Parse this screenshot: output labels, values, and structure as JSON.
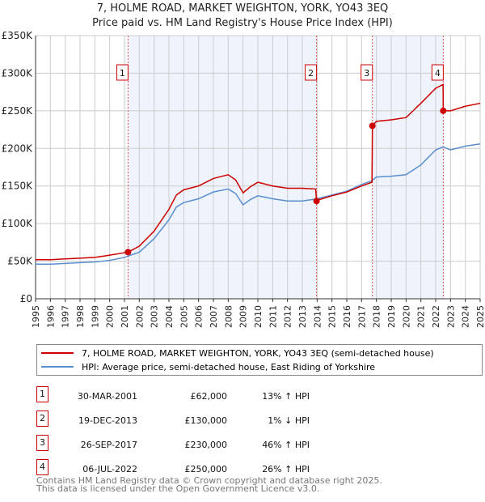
{
  "title": "7, HOLME ROAD, MARKET WEIGHTON, YORK, YO43 3EQ",
  "subtitle": "Price paid vs. HM Land Registry's House Price Index (HPI)",
  "chart_data": {
    "type": "line",
    "xlim": [
      1995,
      2025
    ],
    "ylim": [
      0,
      350000
    ],
    "x_ticks": [
      "1995",
      "1996",
      "1997",
      "1998",
      "1999",
      "2000",
      "2001",
      "2002",
      "2003",
      "2004",
      "2005",
      "2006",
      "2007",
      "2008",
      "2009",
      "2010",
      "2011",
      "2012",
      "2013",
      "2014",
      "2015",
      "2016",
      "2017",
      "2018",
      "2019",
      "2020",
      "2021",
      "2022",
      "2023",
      "2024",
      "2025"
    ],
    "y_ticks": [
      {
        "v": 0,
        "label": "£0"
      },
      {
        "v": 50000,
        "label": "£50K"
      },
      {
        "v": 100000,
        "label": "£100K"
      },
      {
        "v": 150000,
        "label": "£150K"
      },
      {
        "v": 200000,
        "label": "£200K"
      },
      {
        "v": 250000,
        "label": "£250K"
      },
      {
        "v": 300000,
        "label": "£300K"
      },
      {
        "v": 350000,
        "label": "£350K"
      }
    ],
    "series": [
      {
        "name": "7, HOLME ROAD, MARKET WEIGHTON, YORK, YO43 3EQ (semi-detached house)",
        "color": "#cc0000",
        "x": [
          1995,
          1996,
          1997,
          1998,
          1999,
          2000,
          2001.24,
          2002,
          2003,
          2004,
          2004.5,
          2005,
          2006,
          2007,
          2008,
          2008.5,
          2009,
          2009.5,
          2010,
          2011,
          2012,
          2013,
          2013.9,
          2013.96,
          2014,
          2015,
          2016,
          2017,
          2017.7,
          2017.73,
          2018,
          2019,
          2020,
          2021,
          2022,
          2022.5,
          2022.51,
          2023,
          2024,
          2025
        ],
        "y": [
          52000,
          52000,
          53000,
          54000,
          55000,
          58000,
          62000,
          70000,
          90000,
          119000,
          138000,
          145000,
          150000,
          160000,
          165000,
          158000,
          141000,
          149000,
          155000,
          150000,
          147000,
          147000,
          146000,
          130000,
          131000,
          137000,
          142000,
          150000,
          155000,
          230000,
          236000,
          238000,
          241000,
          260000,
          280000,
          285000,
          250000,
          250000,
          256000,
          260000
        ]
      },
      {
        "name": "HPI: Average price, semi-detached house, East Riding of Yorkshire",
        "color": "#5b8ed0",
        "x": [
          1995,
          1996,
          1997,
          1998,
          1999,
          2000,
          2001,
          2002,
          2003,
          2004,
          2004.5,
          2005,
          2006,
          2007,
          2008,
          2008.5,
          2009,
          2009.5,
          2010,
          2011,
          2012,
          2013,
          2014,
          2015,
          2016,
          2017,
          2017.7,
          2018,
          2019,
          2020,
          2021,
          2022,
          2022.5,
          2023,
          2024,
          2025
        ],
        "y": [
          46000,
          46000,
          47000,
          48000,
          49000,
          51000,
          55000,
          62000,
          80000,
          105000,
          122000,
          128000,
          133000,
          142000,
          146000,
          140000,
          125000,
          132000,
          137000,
          133000,
          130000,
          130000,
          133000,
          138000,
          143000,
          152000,
          157000,
          162000,
          163000,
          165000,
          178000,
          198000,
          202000,
          198000,
          203000,
          206000
        ]
      }
    ],
    "sales": [
      {
        "n": "1",
        "x": 2001.24,
        "y": 62000,
        "date": "30-MAR-2001",
        "price": "£62,000",
        "hpi": "13% ↑ HPI"
      },
      {
        "n": "2",
        "x": 2013.96,
        "y": 130000,
        "date": "19-DEC-2013",
        "price": "£130,000",
        "hpi": "1% ↓ HPI"
      },
      {
        "n": "3",
        "x": 2017.73,
        "y": 230000,
        "date": "26-SEP-2017",
        "price": "£230,000",
        "hpi": "46% ↑ HPI"
      },
      {
        "n": "4",
        "x": 2022.51,
        "y": 250000,
        "date": "06-JUL-2022",
        "price": "£250,000",
        "hpi": "26% ↑ HPI"
      }
    ]
  },
  "footer": [
    "Contains HM Land Registry data © Crown copyright and database right 2025.",
    "This data is licensed under the Open Government Licence v3.0."
  ]
}
